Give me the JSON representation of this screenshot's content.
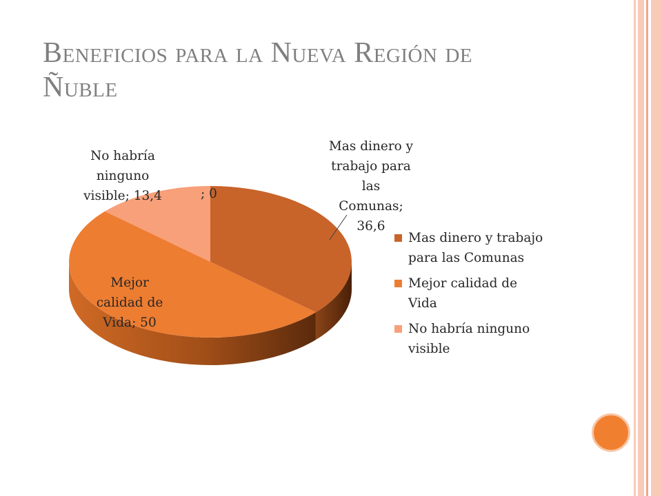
{
  "slide": {
    "title_line1": "Beneficios para la Nueva Región de",
    "title_line2": "Ñuble"
  },
  "colors": {
    "stripe": "#f8cbb8",
    "stripe_dark": "#f2a48a",
    "accent_circle": "#f08030"
  },
  "chart_data": {
    "type": "pie",
    "three_d": true,
    "title": "",
    "categories": [
      "Mas dinero y trabajo para las Comunas",
      "Mejor calidad de Vida",
      "No habría ninguno visible",
      ""
    ],
    "values": [
      36.6,
      50,
      13.4,
      0
    ],
    "colors": [
      "#c8642a",
      "#ed7d31",
      "#f8a07a",
      "#f4b183"
    ],
    "data_labels": [
      [
        "Mas dinero y",
        "trabajo para",
        "las",
        "Comunas;",
        "36,6"
      ],
      [
        "Mejor",
        "calidad de",
        "Vida; 50"
      ],
      [
        "No habría",
        "ninguno",
        "visible; 13,4"
      ],
      [
        "; 0"
      ]
    ],
    "legend": {
      "position": "right",
      "entries": [
        [
          "Mas dinero y trabajo",
          "para las Comunas"
        ],
        [
          "Mejor calidad de",
          "Vida"
        ],
        [
          "No habría ninguno",
          "visible"
        ]
      ]
    }
  }
}
